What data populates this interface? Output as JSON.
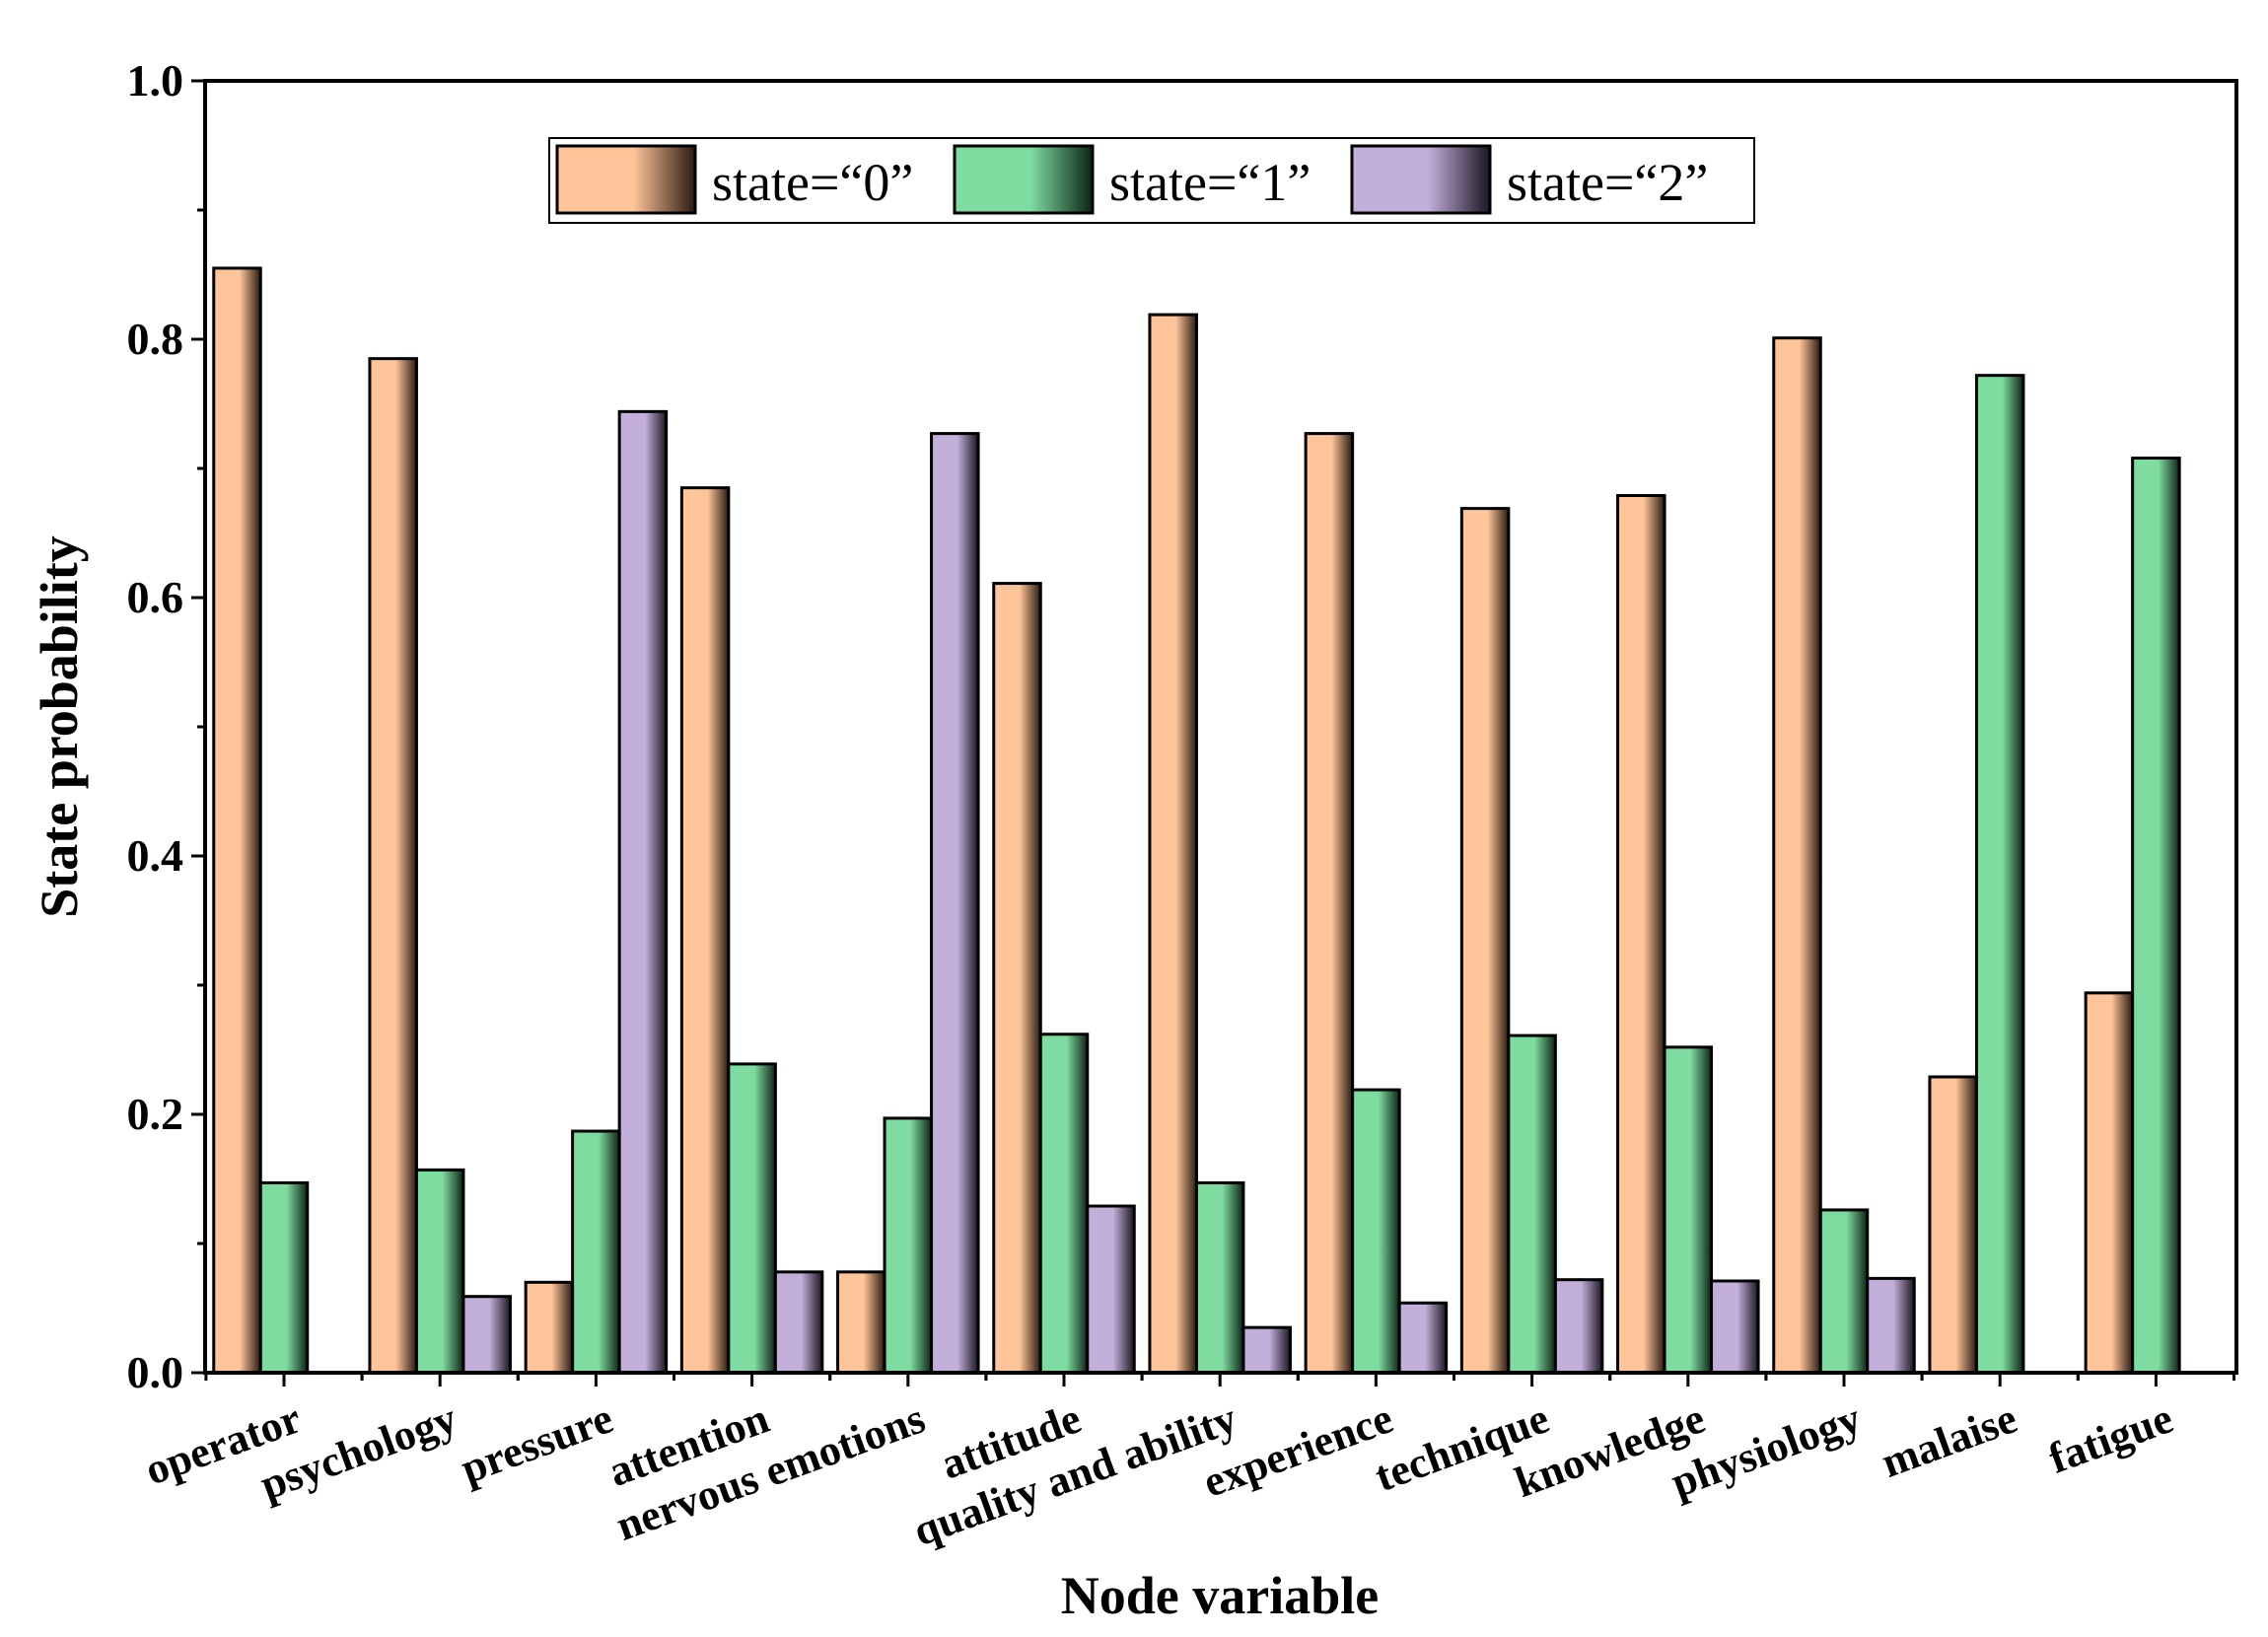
{
  "chart_data": {
    "type": "bar",
    "title": "",
    "xlabel": "Node variable",
    "ylabel": "State probability",
    "ylim": [
      0,
      1.0
    ],
    "yticks": [
      "0.0",
      "0.2",
      "0.4",
      "0.6",
      "0.8",
      "1.0"
    ],
    "categories": [
      "operator",
      "psychology",
      "pressure",
      "attention",
      "nervous emotions",
      "attitude",
      "quality and ability",
      "experience",
      "technique",
      "knowledge",
      "physiology",
      "malaise",
      "fatigue"
    ],
    "series": [
      {
        "name": "state=“0”",
        "color": "#FFC59A",
        "values": [
          0.855,
          0.785,
          0.07,
          0.685,
          0.078,
          0.611,
          0.819,
          0.727,
          0.669,
          0.679,
          0.801,
          0.229,
          0.294
        ]
      },
      {
        "name": "state=“1”",
        "color": "#7FDCA0",
        "values": [
          0.147,
          0.157,
          0.187,
          0.239,
          0.197,
          0.262,
          0.147,
          0.219,
          0.261,
          0.252,
          0.126,
          0.772,
          0.708
        ]
      },
      {
        "name": "state=“2”",
        "color": "#C3B0DA",
        "values": [
          null,
          0.059,
          0.744,
          0.078,
          0.727,
          0.129,
          0.035,
          0.054,
          0.072,
          0.071,
          0.073,
          null,
          null
        ]
      }
    ],
    "legend_position": "top-center",
    "grid": false
  }
}
